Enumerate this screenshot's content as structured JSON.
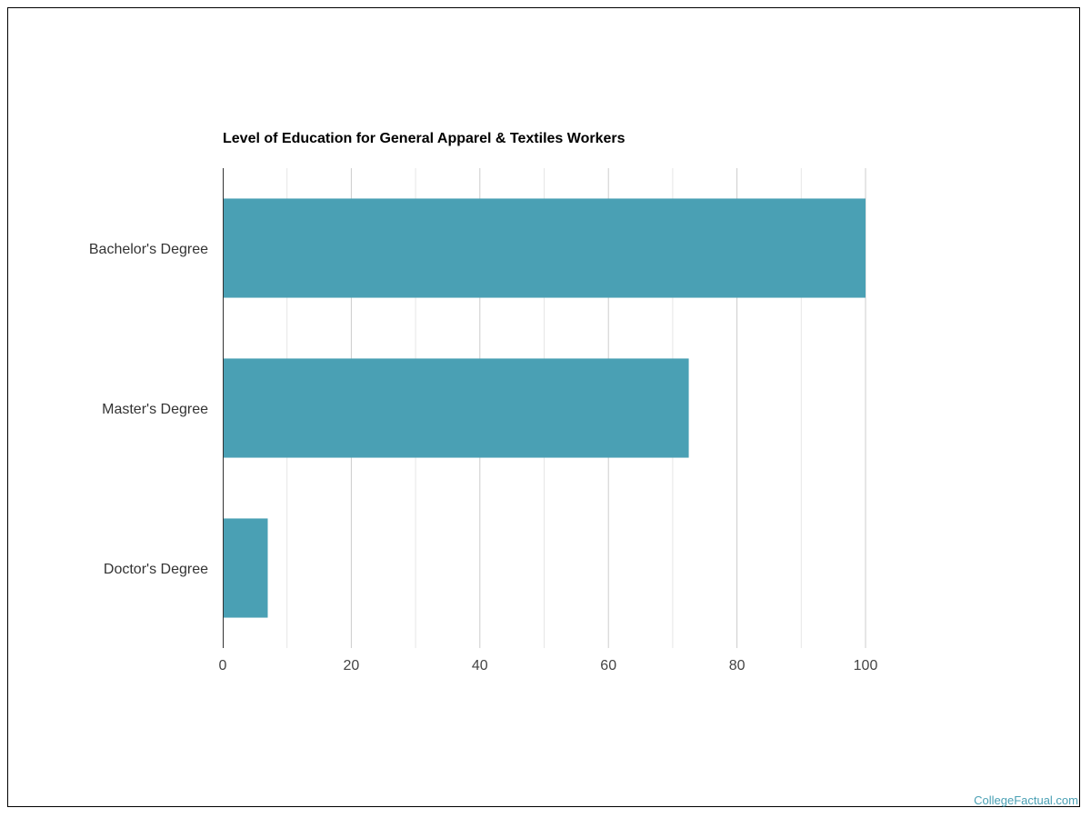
{
  "watermark": "CollegeFactual.com",
  "chart_data": {
    "type": "bar",
    "orientation": "horizontal",
    "title": "Level of Education for General Apparel & Textiles Workers",
    "categories": [
      "Bachelor's Degree",
      "Master's Degree",
      "Doctor's Degree"
    ],
    "values": [
      100,
      72.5,
      7
    ],
    "xlim": [
      0,
      100
    ],
    "x_ticks": [
      0,
      20,
      40,
      60,
      80,
      100
    ],
    "grid": true,
    "legend": "none",
    "bar_color": "#4aa0b4"
  }
}
